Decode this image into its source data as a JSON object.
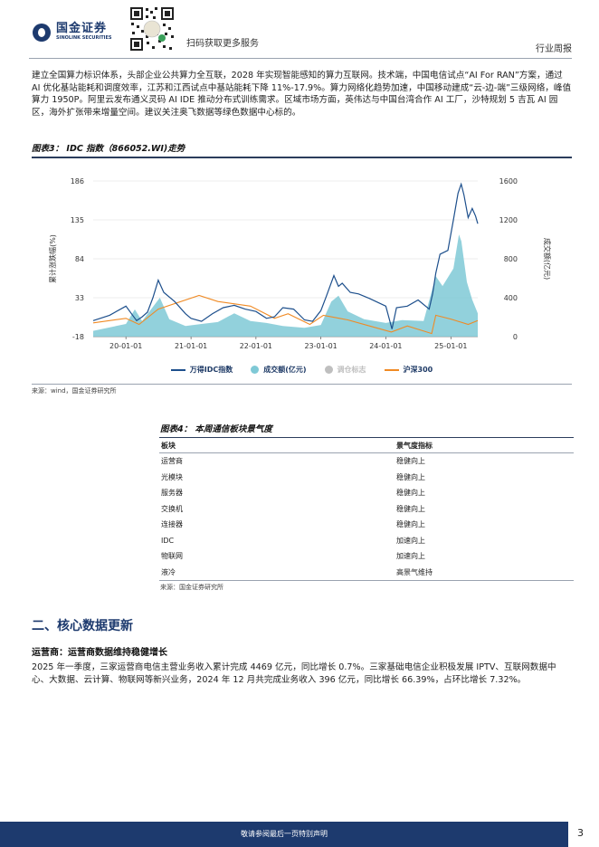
{
  "header": {
    "company_cn": "国金证券",
    "company_en": "SINOLINK SECURITIES",
    "qr_caption": "扫码获取更多服务",
    "doc_type": "行业周报"
  },
  "intro_paragraph": "建立全国算力标识体系，头部企业公共算力全互联，2028 年实现智能感知的算力互联网。技术端，中国电信试点“AI For RAN”方案，通过 AI 优化基站能耗和调度效率，江苏和江西试点中基站能耗下降 11%-17.9%。算力网络化趋势加速，中国移动建成“云-边-端”三级网络，峰值算力 1950P。阿里云发布通义灵码 AI IDE 推动分布式训练需求。区域市场方面，英伟达与中国台湾合作 AI 工厂，沙特规划 5 吉瓦 AI 园区，海外扩张带来增量空间。建议关注奥飞数据等绿色数据中心标的。",
  "figure3": {
    "title": "图表3： IDC 指数（866052.WI)走势",
    "source": "来源：wind，国金证券研究所"
  },
  "chart_data": {
    "type": "line",
    "x_ticks": [
      "20-01-01",
      "21-01-01",
      "22-01-01",
      "23-01-01",
      "24-01-01",
      "25-01-01"
    ],
    "left_axis": {
      "label": "累计涨跌幅(%)",
      "ticks": [
        186,
        135,
        84,
        33,
        -18
      ],
      "range": [
        -18,
        186
      ]
    },
    "right_axis": {
      "label": "成交额(亿元)",
      "ticks": [
        1600,
        1200,
        800,
        400,
        0
      ],
      "range": [
        0,
        1600
      ]
    },
    "legend": [
      "万得IDC指数",
      "成交额(亿元)",
      "调仓标志",
      "沪深300"
    ],
    "colors": {
      "idc": "#1d4f8c",
      "volume": "#7fc9d6",
      "rebalance": "#bfbfbf",
      "hs300": "#f08a24"
    },
    "series": [
      {
        "name": "万得IDC指数",
        "axis": "left",
        "x": [
          "2019-07-01",
          "2019-10-01",
          "2020-01-01",
          "2020-02-01",
          "2020-03-01",
          "2020-04-01",
          "2020-05-01",
          "2020-06-01",
          "2020-07-01",
          "2020-08-01",
          "2020-10-01",
          "2020-12-01",
          "2021-01-01",
          "2021-03-01",
          "2021-05-01",
          "2021-07-01",
          "2021-09-01",
          "2021-11-01",
          "2022-01-01",
          "2022-03-01",
          "2022-04-15",
          "2022-06-01",
          "2022-08-01",
          "2022-10-01",
          "2022-11-15",
          "2023-01-01",
          "2023-02-01",
          "2023-03-15",
          "2023-04-10",
          "2023-05-01",
          "2023-06-15",
          "2023-08-01",
          "2023-10-01",
          "2024-01-01",
          "2024-02-05",
          "2024-03-01",
          "2024-05-01",
          "2024-07-01",
          "2024-09-01",
          "2024-09-20",
          "2024-10-08",
          "2024-11-01",
          "2024-12-15",
          "2025-01-15",
          "2025-02-10",
          "2025-02-28",
          "2025-03-15",
          "2025-04-08",
          "2025-05-01",
          "2025-05-20",
          "2025-06-01"
        ],
        "y": [
          3,
          10,
          22,
          12,
          3,
          8,
          14,
          33,
          56,
          40,
          28,
          12,
          6,
          2,
          12,
          20,
          23,
          18,
          15,
          6,
          8,
          20,
          18,
          4,
          2,
          16,
          35,
          62,
          48,
          52,
          40,
          38,
          32,
          22,
          -8,
          20,
          22,
          30,
          18,
          38,
          65,
          90,
          95,
          135,
          170,
          182,
          168,
          138,
          150,
          140,
          130
        ]
      },
      {
        "name": "沪深300",
        "axis": "left",
        "x": [
          "2019-07-01",
          "2020-01-01",
          "2020-03-15",
          "2020-07-01",
          "2021-02-15",
          "2021-06-01",
          "2021-12-01",
          "2022-04-15",
          "2022-07-01",
          "2022-10-31",
          "2023-01-15",
          "2023-06-01",
          "2023-10-01",
          "2024-02-01",
          "2024-05-01",
          "2024-09-15",
          "2024-10-08",
          "2025-01-01",
          "2025-04-08",
          "2025-06-01"
        ],
        "y": [
          0,
          6,
          -2,
          18,
          36,
          28,
          22,
          6,
          12,
          -2,
          10,
          4,
          -4,
          -12,
          -4,
          -14,
          10,
          5,
          -2,
          3
        ]
      },
      {
        "name": "成交额(亿元)",
        "axis": "right",
        "x": [
          "2019-07-01",
          "2020-01-01",
          "2020-02-20",
          "2020-04-01",
          "2020-07-10",
          "2020-09-01",
          "2020-12-01",
          "2021-03-01",
          "2021-06-01",
          "2021-09-01",
          "2021-12-01",
          "2022-03-01",
          "2022-06-01",
          "2022-10-01",
          "2023-01-01",
          "2023-03-01",
          "2023-04-10",
          "2023-06-01",
          "2023-09-01",
          "2024-01-01",
          "2024-04-01",
          "2024-08-01",
          "2024-10-08",
          "2024-11-15",
          "2025-01-15",
          "2025-02-15",
          "2025-03-01",
          "2025-04-01",
          "2025-05-01",
          "2025-06-01"
        ],
        "y": [
          60,
          130,
          280,
          160,
          400,
          180,
          110,
          130,
          150,
          240,
          160,
          140,
          110,
          90,
          120,
          360,
          420,
          260,
          180,
          140,
          170,
          160,
          620,
          520,
          700,
          1050,
          980,
          560,
          380,
          240
        ]
      }
    ]
  },
  "figure4": {
    "title": "图表4： 本周通信板块景气度",
    "headers": [
      "板块",
      "景气度指标"
    ],
    "rows": [
      [
        "运营商",
        "稳健向上"
      ],
      [
        "光模块",
        "稳健向上"
      ],
      [
        "服务器",
        "稳健向上"
      ],
      [
        "交换机",
        "稳健向上"
      ],
      [
        "连接器",
        "稳健向上"
      ],
      [
        "IDC",
        "加速向上"
      ],
      [
        "物联网",
        "加速向上"
      ],
      [
        "液冷",
        "高景气维持"
      ]
    ],
    "source": "来源：国金证券研究所"
  },
  "section": {
    "title": "二、核心数据更新",
    "subtitle": "运营商：运营商数据维持稳健增长",
    "paragraph": "2025 年一季度，三家运营商电信主营业务收入累计完成 4469 亿元，同比增长 0.7%。三家基础电信企业积极发展 IPTV、互联网数据中心、大数据、云计算、物联网等新兴业务，2024 年 12 月共完成业务收入 396 亿元，同比增长 66.39%，占环比增长 7.32%。"
  },
  "footer": {
    "disclaimer": "敬请参阅最后一页特别声明",
    "page_number": "3"
  }
}
